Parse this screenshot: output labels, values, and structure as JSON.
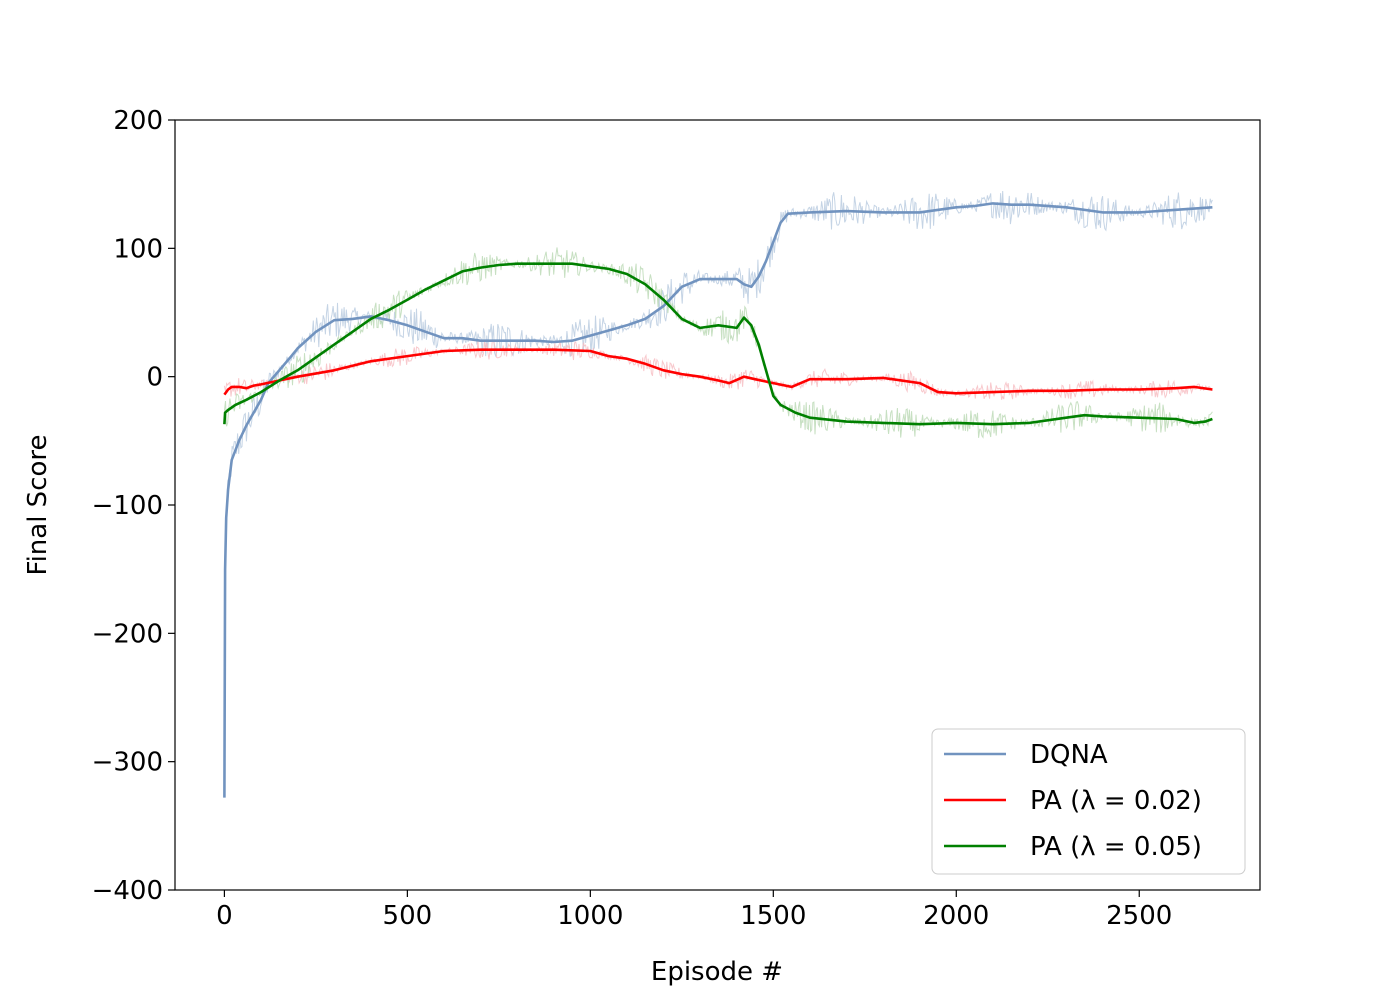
{
  "chart_data": {
    "type": "line",
    "xlabel": "Episode #",
    "ylabel": "Final Score",
    "xlim": [
      -135,
      2830
    ],
    "ylim": [
      -400,
      200
    ],
    "xticks": [
      0,
      500,
      1000,
      1500,
      2000,
      2500
    ],
    "yticks": [
      -400,
      -300,
      -200,
      -100,
      0,
      100,
      200
    ],
    "xtick_labels": [
      "0",
      "500",
      "1000",
      "1500",
      "2000",
      "2500"
    ],
    "ytick_labels": [
      "−400",
      "−300",
      "−200",
      "−100",
      "0",
      "100",
      "200"
    ],
    "grid": false,
    "legend_position": "lower-right",
    "series": [
      {
        "name": "DQNA",
        "color": "#7193bf",
        "raw_color": "#b7c9df",
        "noise": 10,
        "x": [
          0,
          2,
          5,
          10,
          20,
          40,
          60,
          80,
          100,
          120,
          150,
          180,
          200,
          250,
          300,
          350,
          400,
          450,
          500,
          550,
          600,
          650,
          700,
          750,
          800,
          850,
          900,
          950,
          1000,
          1050,
          1100,
          1150,
          1200,
          1250,
          1300,
          1350,
          1400,
          1420,
          1440,
          1460,
          1480,
          1500,
          1520,
          1540,
          1600,
          1700,
          1800,
          1900,
          2000,
          2050,
          2100,
          2150,
          2200,
          2300,
          2400,
          2500,
          2600,
          2700
        ],
        "y": [
          -328,
          -150,
          -110,
          -88,
          -65,
          -50,
          -38,
          -28,
          -18,
          -5,
          5,
          15,
          22,
          35,
          44,
          45,
          47,
          44,
          40,
          35,
          30,
          30,
          28,
          28,
          28,
          28,
          27,
          28,
          32,
          36,
          40,
          45,
          55,
          70,
          76,
          76,
          76,
          72,
          70,
          78,
          90,
          105,
          120,
          127,
          128,
          129,
          128,
          128,
          132,
          133,
          135,
          134,
          134,
          132,
          128,
          128,
          130,
          132
        ]
      },
      {
        "name": "PA (λ = 0.02)",
        "color": "#ff0000",
        "raw_color": "#f6bcc1",
        "noise": 5,
        "x": [
          0,
          10,
          20,
          40,
          60,
          80,
          100,
          150,
          200,
          300,
          400,
          500,
          600,
          700,
          800,
          900,
          1000,
          1050,
          1100,
          1150,
          1200,
          1250,
          1300,
          1350,
          1380,
          1420,
          1450,
          1500,
          1550,
          1600,
          1700,
          1800,
          1900,
          1950,
          2000,
          2100,
          2200,
          2300,
          2400,
          2500,
          2600,
          2650,
          2700
        ],
        "y": [
          -14,
          -10,
          -8,
          -8,
          -9,
          -7,
          -6,
          -3,
          0,
          5,
          12,
          16,
          20,
          21,
          21,
          21,
          20,
          16,
          14,
          10,
          5,
          2,
          0,
          -3,
          -5,
          0,
          -2,
          -5,
          -8,
          -2,
          -2,
          -1,
          -5,
          -12,
          -13,
          -12,
          -11,
          -11,
          -10,
          -10,
          -9,
          -8,
          -10
        ]
      },
      {
        "name": "PA (λ = 0.05)",
        "color": "#008000",
        "raw_color": "#b9d8b3",
        "noise": 8,
        "x": [
          0,
          2,
          10,
          30,
          60,
          100,
          150,
          200,
          250,
          300,
          350,
          400,
          450,
          500,
          550,
          600,
          650,
          700,
          750,
          800,
          850,
          900,
          950,
          1000,
          1050,
          1100,
          1150,
          1200,
          1250,
          1300,
          1350,
          1400,
          1420,
          1440,
          1460,
          1480,
          1500,
          1520,
          1560,
          1600,
          1700,
          1800,
          1900,
          2000,
          2100,
          2200,
          2300,
          2350,
          2400,
          2500,
          2600,
          2650,
          2680,
          2700
        ],
        "y": [
          -37,
          -28,
          -26,
          -22,
          -18,
          -12,
          -3,
          5,
          15,
          25,
          35,
          45,
          52,
          60,
          68,
          75,
          82,
          85,
          87,
          88,
          88,
          88,
          88,
          86,
          84,
          80,
          72,
          60,
          45,
          38,
          40,
          38,
          46,
          40,
          25,
          5,
          -15,
          -22,
          -28,
          -32,
          -35,
          -36,
          -37,
          -36,
          -37,
          -36,
          -32,
          -30,
          -31,
          -32,
          -33,
          -36,
          -35,
          -33
        ]
      }
    ]
  }
}
